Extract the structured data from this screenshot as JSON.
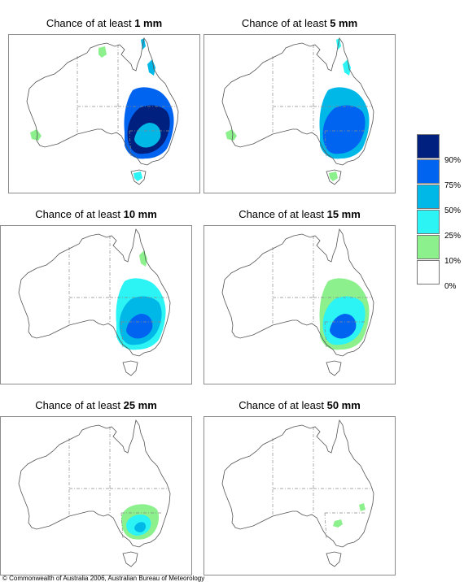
{
  "panels": [
    {
      "prefix": "Chance of at least ",
      "amount": "1 mm",
      "zones": [
        {
          "id": "se-main",
          "level": 4
        },
        {
          "id": "se-core",
          "level": 5
        },
        {
          "id": "se-inner",
          "level": 3
        },
        {
          "id": "qld-coast",
          "level": 3
        },
        {
          "id": "cape-york",
          "level": 3
        },
        {
          "id": "top-end",
          "level": 1
        },
        {
          "id": "sw-corner",
          "level": 1
        },
        {
          "id": "tas",
          "level": 2
        }
      ]
    },
    {
      "prefix": "Chance of at least ",
      "amount": "5 mm",
      "zones": [
        {
          "id": "se-main",
          "level": 3
        },
        {
          "id": "se-core",
          "level": 4
        },
        {
          "id": "qld-coast",
          "level": 2
        },
        {
          "id": "cape-york",
          "level": 2
        },
        {
          "id": "sw-corner",
          "level": 1
        },
        {
          "id": "tas",
          "level": 1
        }
      ]
    },
    {
      "prefix": "Chance of at least ",
      "amount": "10 mm",
      "zones": [
        {
          "id": "se-main",
          "level": 2
        },
        {
          "id": "se-core",
          "level": 3
        },
        {
          "id": "se-inner",
          "level": 4
        },
        {
          "id": "qld-coast",
          "level": 1
        }
      ]
    },
    {
      "prefix": "Chance of at least ",
      "amount": "15 mm",
      "zones": [
        {
          "id": "se-main",
          "level": 1
        },
        {
          "id": "se-core",
          "level": 2
        },
        {
          "id": "se-inner",
          "level": 4
        }
      ]
    },
    {
      "prefix": "Chance of at least ",
      "amount": "25 mm",
      "zones": [
        {
          "id": "se-small",
          "level": 1
        },
        {
          "id": "se-small-core",
          "level": 2
        },
        {
          "id": "se-small-inner",
          "level": 3
        }
      ]
    },
    {
      "prefix": "Chance of at least ",
      "amount": "50 mm",
      "zones": [
        {
          "id": "se-spot",
          "level": 1
        },
        {
          "id": "ne-nsw-spot",
          "level": 1
        }
      ]
    }
  ],
  "legend": {
    "classes": [
      {
        "range": "90% - 100%",
        "color": "#00207f"
      },
      {
        "range": "75% - 90%",
        "color": "#0064f0"
      },
      {
        "range": "50% - 75%",
        "color": "#00b8e8"
      },
      {
        "range": "25% - 50%",
        "color": "#2cf4f4"
      },
      {
        "range": "10% - 25%",
        "color": "#8cf08c"
      },
      {
        "range": "0% - 10%",
        "color": "#ffffff"
      }
    ],
    "tick_labels": [
      "90%",
      "75%",
      "50%",
      "25%",
      "10%",
      "0%"
    ]
  },
  "copyright": "© Commonwealth of Australia 2006, Australian Bureau of Meteorology"
}
